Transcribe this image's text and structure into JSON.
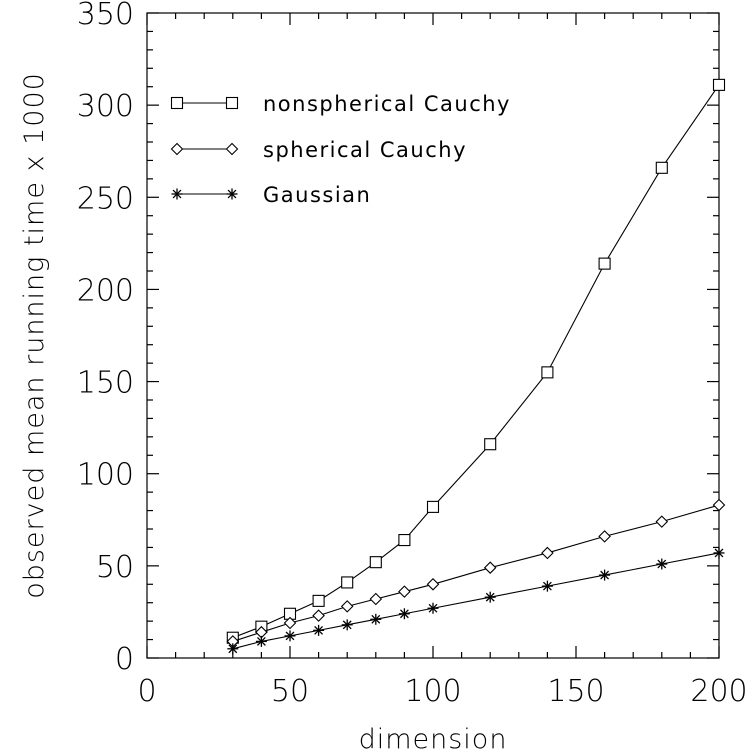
{
  "chart_data": {
    "type": "line",
    "xlabel": "dimension",
    "ylabel": "observed mean running time x 1000",
    "xlim": [
      0,
      200
    ],
    "ylim": [
      0,
      350
    ],
    "xticks": [
      "0",
      "50",
      "100",
      "150",
      "200"
    ],
    "yticks": [
      "0",
      "50",
      "100",
      "150",
      "200",
      "250",
      "300",
      "350"
    ],
    "grid": false,
    "legend_position": "top-left",
    "series": [
      {
        "name": "nonspherical Cauchy",
        "marker": "square",
        "x": [
          30,
          40,
          50,
          60,
          70,
          80,
          90,
          100,
          120,
          140,
          160,
          180,
          200
        ],
        "y": [
          11,
          17,
          24,
          31,
          41,
          52,
          64,
          82,
          116,
          155,
          214,
          266,
          311
        ]
      },
      {
        "name": "spherical Cauchy",
        "marker": "diamond",
        "x": [
          30,
          40,
          50,
          60,
          70,
          80,
          90,
          100,
          120,
          140,
          160,
          180,
          200
        ],
        "y": [
          9,
          14,
          19,
          23,
          28,
          32,
          36,
          40,
          49,
          57,
          66,
          74,
          83
        ]
      },
      {
        "name": "Gaussian",
        "marker": "asterisk",
        "x": [
          30,
          40,
          50,
          60,
          70,
          80,
          90,
          100,
          120,
          140,
          160,
          180,
          200
        ],
        "y": [
          5,
          9,
          12,
          15,
          18,
          21,
          24,
          27,
          33,
          39,
          45,
          51,
          57
        ]
      }
    ]
  }
}
